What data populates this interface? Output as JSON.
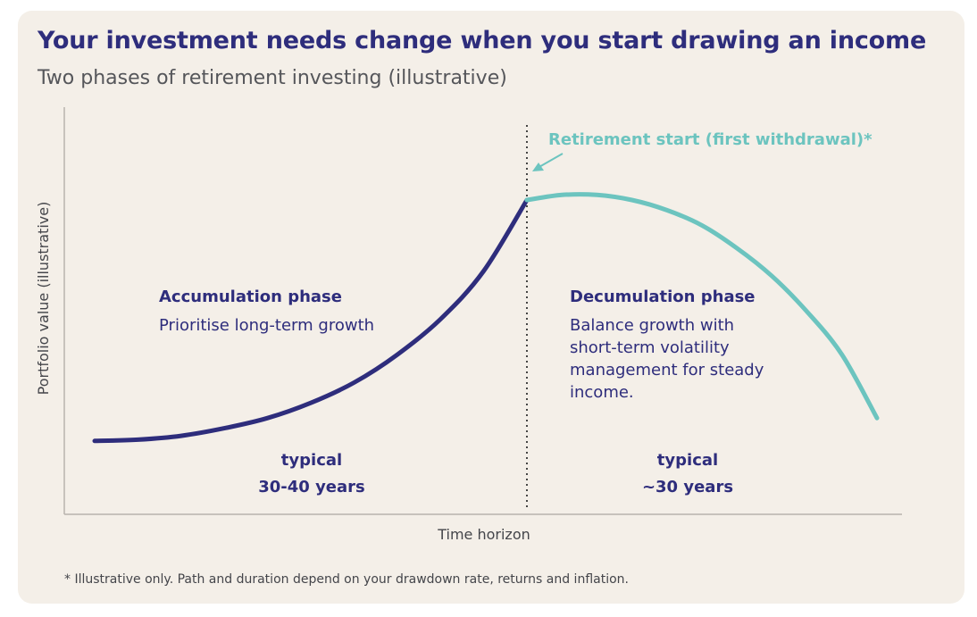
{
  "title": "Your investment needs change when you start drawing an income",
  "subtitle": "Two phases of retirement investing (illustrative)",
  "footnote": "* Illustrative only. Path and duration depend on your drawdown rate, returns and inflation.",
  "colors": {
    "accumulation": "#2e2d7c",
    "decumulation": "#6cc4bf",
    "text": "#2e2d7c",
    "axis": "#b8b4ad",
    "background": "#f4efe8"
  },
  "chart_data": {
    "type": "line",
    "xlabel": "Time horizon",
    "ylabel": "Portfolio value (illustrative)",
    "grid": false,
    "annotations": {
      "retirement_marker": "Retirement start (first withdrawal)*"
    },
    "phases": [
      {
        "name": "Accumulation phase",
        "description": "Prioritise long-term growth",
        "duration_line1": "typical",
        "duration_line2": "30-40 years"
      },
      {
        "name": "Decumulation phase",
        "description_lines": [
          "Balance growth with",
          "short-term volatility",
          "management for steady",
          "income."
        ],
        "duration_line1": "typical",
        "duration_line2": "~30 years"
      }
    ],
    "series": [
      {
        "phase": "accumulation",
        "x": [
          0,
          0.1,
          0.2,
          0.3,
          0.4,
          0.5,
          0.6,
          0.7,
          0.8,
          0.9,
          1.0
        ],
        "y": [
          0.05,
          0.055,
          0.07,
          0.1,
          0.14,
          0.2,
          0.28,
          0.39,
          0.53,
          0.72,
          1.0
        ]
      },
      {
        "phase": "decumulation",
        "x": [
          0,
          0.1,
          0.2,
          0.3,
          0.4,
          0.5,
          0.6,
          0.7,
          0.8,
          0.9,
          1.0
        ],
        "y": [
          1.0,
          1.02,
          1.02,
          1.0,
          0.96,
          0.9,
          0.81,
          0.7,
          0.56,
          0.39,
          0.14
        ]
      }
    ]
  }
}
